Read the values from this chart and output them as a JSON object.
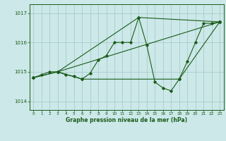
{
  "background_color": "#cce8e8",
  "grid_color": "#aacccc",
  "line_color": "#1a5c1a",
  "marker_color": "#1a5c1a",
  "xlabel": "Graphe pression niveau de la mer (hPa)",
  "ylim": [
    1013.7,
    1017.3
  ],
  "xlim": [
    -0.5,
    23.5
  ],
  "yticks": [
    1014,
    1015,
    1016,
    1017
  ],
  "xticks": [
    0,
    1,
    2,
    3,
    4,
    5,
    6,
    7,
    8,
    9,
    10,
    11,
    12,
    13,
    14,
    15,
    16,
    17,
    18,
    19,
    20,
    21,
    22,
    23
  ],
  "series": [
    [
      0,
      1014.8
    ],
    [
      1,
      1014.9
    ],
    [
      2,
      1015.0
    ],
    [
      3,
      1015.0
    ],
    [
      4,
      1014.9
    ],
    [
      5,
      1014.85
    ],
    [
      6,
      1014.75
    ],
    [
      7,
      1014.95
    ],
    [
      8,
      1015.4
    ],
    [
      9,
      1015.55
    ],
    [
      10,
      1016.0
    ],
    [
      11,
      1016.0
    ],
    [
      12,
      1016.0
    ],
    [
      13,
      1016.85
    ],
    [
      14,
      1015.9
    ],
    [
      15,
      1014.65
    ],
    [
      16,
      1014.45
    ],
    [
      17,
      1014.35
    ],
    [
      18,
      1014.75
    ],
    [
      19,
      1015.35
    ],
    [
      20,
      1016.0
    ],
    [
      21,
      1016.65
    ],
    [
      22,
      1016.65
    ],
    [
      23,
      1016.7
    ]
  ],
  "series2": [
    [
      0,
      1014.8
    ],
    [
      3,
      1015.0
    ],
    [
      23,
      1016.7
    ]
  ],
  "series3": [
    [
      0,
      1014.8
    ],
    [
      3,
      1015.0
    ],
    [
      13,
      1016.85
    ],
    [
      23,
      1016.7
    ]
  ],
  "series4": [
    [
      3,
      1015.0
    ],
    [
      6,
      1014.75
    ],
    [
      18,
      1014.75
    ],
    [
      23,
      1016.7
    ]
  ]
}
